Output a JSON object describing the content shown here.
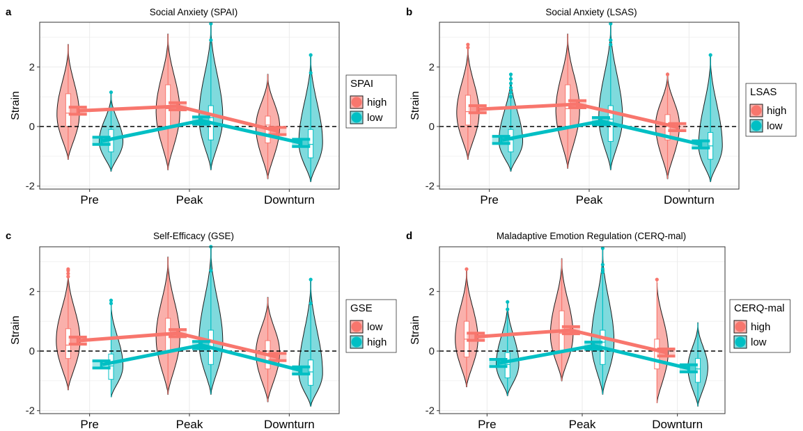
{
  "colors": {
    "high_fill": "#F8766D",
    "low_fill": "#00BFC4",
    "violin_high_fill": "#FAB0AB",
    "violin_low_fill": "#7FDADD",
    "grid": "#EBEBEB",
    "border": "#333333"
  },
  "ylabel": "Strain",
  "x_categories": [
    "Pre",
    "Peak",
    "Downturn"
  ],
  "y_ticks": [
    -2,
    0,
    2
  ],
  "chart_data": [
    {
      "panel": "a",
      "type": "violin",
      "title": "Social Anxiety (SPAI)",
      "xlabel": "",
      "ylabel": "Strain",
      "categories": [
        "Pre",
        "Peak",
        "Downturn"
      ],
      "ylim": [
        -2.1,
        3.5
      ],
      "legend": {
        "title": "SPAI",
        "entries": [
          {
            "label": "high",
            "color": "#F8766D"
          },
          {
            "label": "low",
            "color": "#00BFC4"
          }
        ],
        "placement": "right"
      },
      "series": [
        {
          "name": "high",
          "means": [
            0.53,
            0.68,
            -0.15
          ],
          "ci": [
            0.12,
            0.12,
            0.12
          ],
          "violin": [
            {
              "min": -1.1,
              "max": 2.75,
              "center": 0.4,
              "width": 0.8,
              "box": [
                0.0,
                0.45,
                1.1
              ]
            },
            {
              "min": -1.45,
              "max": 3.1,
              "center": 0.5,
              "width": 0.85,
              "box": [
                0.0,
                0.6,
                1.4
              ]
            },
            {
              "min": -1.75,
              "max": 1.75,
              "center": 0.0,
              "width": 0.85,
              "box": [
                -0.55,
                0.05,
                0.35
              ]
            }
          ],
          "outliers": [
            [],
            [],
            []
          ]
        },
        {
          "name": "low",
          "means": [
            -0.48,
            0.2,
            -0.55
          ],
          "ci": [
            0.12,
            0.12,
            0.12
          ],
          "violin": [
            {
              "min": -1.5,
              "max": 1.1,
              "center": -0.5,
              "width": 0.85,
              "box": [
                -0.85,
                -0.45,
                -0.1
              ]
            },
            {
              "min": -1.45,
              "max": 3.45,
              "center": 0.3,
              "width": 0.85,
              "box": [
                -0.45,
                0.3,
                0.7
              ]
            },
            {
              "min": -1.85,
              "max": 2.4,
              "center": -0.55,
              "width": 0.85,
              "box": [
                -1.05,
                -0.6,
                -0.1
              ]
            }
          ],
          "outliers": [
            [
              1.15
            ],
            [
              2.9,
              3.45
            ],
            [
              1.8,
              2.4
            ]
          ]
        }
      ]
    },
    {
      "panel": "b",
      "type": "violin",
      "title": "Social Anxiety (LSAS)",
      "xlabel": "",
      "ylabel": "Strain",
      "categories": [
        "Pre",
        "Peak",
        "Downturn"
      ],
      "ylim": [
        -2.1,
        3.5
      ],
      "legend": {
        "title": "LSAS",
        "entries": [
          {
            "label": "high",
            "color": "#F8766D"
          },
          {
            "label": "low",
            "color": "#00BFC4"
          }
        ],
        "placement": "right"
      },
      "series": [
        {
          "name": "high",
          "means": [
            0.58,
            0.75,
            -0.02
          ],
          "ci": [
            0.12,
            0.12,
            0.12
          ],
          "violin": [
            {
              "min": -1.1,
              "max": 2.7,
              "center": 0.45,
              "width": 0.8,
              "box": [
                0.05,
                0.5,
                1.05
              ]
            },
            {
              "min": -1.4,
              "max": 3.1,
              "center": 0.55,
              "width": 0.85,
              "box": [
                0.0,
                0.6,
                1.4
              ]
            },
            {
              "min": -1.75,
              "max": 1.8,
              "center": 0.05,
              "width": 0.85,
              "box": [
                -0.45,
                0.1,
                0.4
              ]
            }
          ],
          "outliers": [
            [
              2.65,
              2.75
            ],
            [],
            [
              1.75
            ]
          ]
        },
        {
          "name": "low",
          "means": [
            -0.45,
            0.18,
            -0.6
          ],
          "ci": [
            0.12,
            0.12,
            0.12
          ],
          "violin": [
            {
              "min": -1.5,
              "max": 1.75,
              "center": -0.5,
              "width": 0.85,
              "box": [
                -0.85,
                -0.45,
                -0.1
              ]
            },
            {
              "min": -1.45,
              "max": 3.45,
              "center": 0.3,
              "width": 0.85,
              "box": [
                -0.5,
                0.25,
                0.7
              ]
            },
            {
              "min": -1.85,
              "max": 2.4,
              "center": -0.65,
              "width": 0.85,
              "box": [
                -1.1,
                -0.65,
                -0.2
              ]
            }
          ],
          "outliers": [
            [
              1.0,
              1.15,
              1.3,
              1.45,
              1.6,
              1.75
            ],
            [
              2.75,
              2.9,
              3.45
            ],
            [
              2.4
            ]
          ]
        }
      ]
    },
    {
      "panel": "c",
      "type": "violin",
      "title": "Self-Efficacy (GSE)",
      "xlabel": "",
      "ylabel": "Strain",
      "categories": [
        "Pre",
        "Peak",
        "Downturn"
      ],
      "ylim": [
        -2.1,
        3.5
      ],
      "legend": {
        "title": "GSE",
        "entries": [
          {
            "label": "low",
            "color": "#F8766D"
          },
          {
            "label": "high",
            "color": "#00BFC4"
          }
        ],
        "placement": "right"
      },
      "series": [
        {
          "name": "low",
          "means": [
            0.35,
            0.6,
            -0.2
          ],
          "ci": [
            0.12,
            0.12,
            0.12
          ],
          "violin": [
            {
              "min": -1.3,
              "max": 2.7,
              "center": 0.35,
              "width": 0.85,
              "box": [
                -0.25,
                0.2,
                0.75
              ]
            },
            {
              "min": -1.45,
              "max": 3.15,
              "center": 0.45,
              "width": 0.85,
              "box": [
                0.0,
                0.55,
                1.1
              ]
            },
            {
              "min": -1.7,
              "max": 1.8,
              "center": -0.05,
              "width": 0.85,
              "box": [
                -0.6,
                0.0,
                0.35
              ]
            }
          ],
          "outliers": [
            [
              2.5,
              2.6,
              2.7,
              2.75
            ],
            [],
            []
          ]
        },
        {
          "name": "high",
          "means": [
            -0.45,
            0.2,
            -0.65
          ],
          "ci": [
            0.12,
            0.12,
            0.12
          ],
          "violin": [
            {
              "min": -1.55,
              "max": 1.65,
              "center": -0.5,
              "width": 0.85,
              "box": [
                -0.95,
                -0.5,
                -0.1
              ]
            },
            {
              "min": -1.45,
              "max": 3.5,
              "center": 0.3,
              "width": 0.85,
              "box": [
                -0.45,
                0.3,
                0.7
              ]
            },
            {
              "min": -1.85,
              "max": 2.4,
              "center": -0.75,
              "width": 0.85,
              "box": [
                -1.15,
                -0.7,
                -0.3
              ]
            }
          ],
          "outliers": [
            [
              1.6,
              1.7
            ],
            [
              2.7,
              3.5
            ],
            [
              1.6,
              2.4
            ]
          ]
        }
      ]
    },
    {
      "panel": "d",
      "type": "violin",
      "title": "Maladaptive Emotion Regulation (CERQ-mal)",
      "xlabel": "",
      "ylabel": "Strain",
      "categories": [
        "Pre",
        "Peak",
        "Downturn"
      ],
      "ylim": [
        -2.1,
        3.5
      ],
      "legend": {
        "title": "CERQ-mal",
        "entries": [
          {
            "label": "high",
            "color": "#F8766D"
          },
          {
            "label": "low",
            "color": "#00BFC4"
          }
        ],
        "placement": "right"
      },
      "series": [
        {
          "name": "high",
          "means": [
            0.48,
            0.7,
            -0.05
          ],
          "ci": [
            0.12,
            0.12,
            0.12
          ],
          "violin": [
            {
              "min": -1.2,
              "max": 2.75,
              "center": 0.4,
              "width": 0.85,
              "box": [
                -0.2,
                0.4,
                1.0
              ]
            },
            {
              "min": -1.0,
              "max": 3.1,
              "center": 0.55,
              "width": 0.85,
              "box": [
                0.0,
                0.6,
                1.35
              ]
            },
            {
              "min": -1.75,
              "max": 2.4,
              "center": 0.0,
              "width": 0.85,
              "box": [
                -0.6,
                0.05,
                0.4
              ]
            }
          ],
          "outliers": [
            [
              2.75
            ],
            [],
            [
              2.4
            ]
          ]
        },
        {
          "name": "low",
          "means": [
            -0.4,
            0.18,
            -0.58
          ],
          "ci": [
            0.12,
            0.12,
            0.12
          ],
          "violin": [
            {
              "min": -1.5,
              "max": 1.65,
              "center": -0.45,
              "width": 0.85,
              "box": [
                -0.9,
                -0.45,
                -0.05
              ]
            },
            {
              "min": -1.45,
              "max": 3.45,
              "center": 0.3,
              "width": 0.85,
              "box": [
                -0.45,
                0.3,
                0.7
              ]
            },
            {
              "min": -1.85,
              "max": 0.95,
              "center": -0.55,
              "width": 0.75,
              "box": [
                -1.05,
                -0.6,
                -0.25
              ]
            }
          ],
          "outliers": [
            [
              1.4,
              1.65
            ],
            [
              2.65,
              2.75,
              2.9,
              3.45
            ],
            []
          ]
        }
      ]
    }
  ]
}
